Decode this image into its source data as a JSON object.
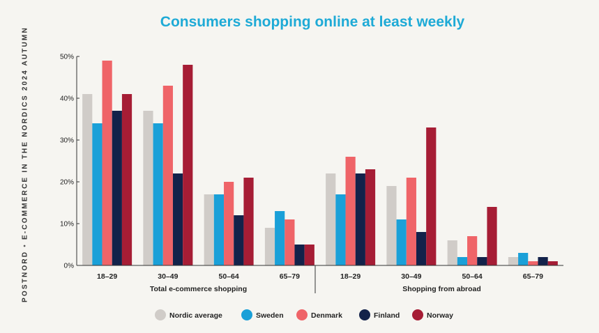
{
  "side_label": {
    "part1": "POSTNORD",
    "separator": "•",
    "part2": "E-COMMERCE IN THE NORDICS 2024 AUTUMN"
  },
  "colors": {
    "title": "#1eaad6",
    "Nordic average": "#d0ccc8",
    "Sweden": "#1aa0d8",
    "Denmark": "#ef6468",
    "Finland": "#13224a",
    "Norway": "#a61d35"
  },
  "chart_data": {
    "type": "bar",
    "title": "Consumers shopping online at least weekly",
    "xlabel": "",
    "ylabel": "",
    "ylim": [
      0,
      50
    ],
    "yticks": [
      0,
      10,
      20,
      30,
      40,
      50
    ],
    "ytick_labels": [
      "0%",
      "10%",
      "20%",
      "30%",
      "40%",
      "50%"
    ],
    "groups": [
      {
        "label": "Total e-commerce shopping",
        "categories": [
          "18–29",
          "30–49",
          "50–64",
          "65–79"
        ]
      },
      {
        "label": "Shopping from abroad",
        "categories": [
          "18–29",
          "30–49",
          "50–64",
          "65–79"
        ]
      }
    ],
    "series": [
      {
        "name": "Nordic average",
        "values": [
          41,
          37,
          17,
          9,
          22,
          19,
          6,
          2
        ]
      },
      {
        "name": "Sweden",
        "values": [
          34,
          34,
          17,
          13,
          17,
          11,
          2,
          3
        ]
      },
      {
        "name": "Denmark",
        "values": [
          49,
          43,
          20,
          11,
          26,
          21,
          7,
          1
        ]
      },
      {
        "name": "Finland",
        "values": [
          37,
          22,
          12,
          5,
          22,
          8,
          2,
          2
        ]
      },
      {
        "name": "Norway",
        "values": [
          41,
          48,
          21,
          5,
          23,
          33,
          14,
          1
        ]
      }
    ],
    "grid": false,
    "legend_position": "bottom"
  }
}
